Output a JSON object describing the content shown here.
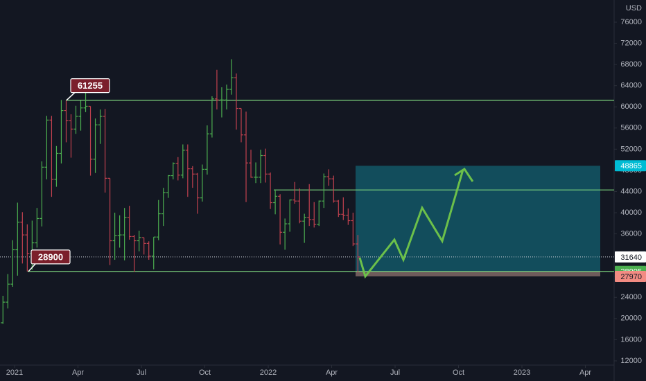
{
  "chart_data": {
    "type": "ohlc",
    "currency": "USD",
    "x": [
      -0.55,
      -0.32,
      -0.09,
      0.14,
      0.37,
      0.6,
      0.83,
      1.06,
      1.29,
      1.52,
      1.75,
      1.98,
      2.21,
      2.44,
      2.67,
      2.9,
      3.13,
      3.36,
      3.59,
      3.82,
      4.05,
      4.28,
      4.51,
      4.74,
      4.97,
      5.2,
      5.43,
      5.66,
      5.89,
      6.12,
      6.35,
      6.58,
      6.81,
      7.04,
      7.27,
      7.5,
      7.73,
      7.96,
      8.19,
      8.42,
      8.65,
      8.88,
      9.11,
      9.34,
      9.57,
      9.8,
      10.03,
      10.26,
      10.49,
      10.72,
      10.95,
      11.18,
      11.41,
      11.64,
      11.87,
      12.1,
      12.33,
      12.56,
      12.79,
      13.02,
      13.25,
      13.48,
      13.71,
      13.94,
      14.17,
      14.4,
      14.63,
      14.86,
      15.09,
      15.32,
      15.55,
      15.78,
      16.01,
      16.24
    ],
    "open": [
      19200,
      23100,
      26500,
      33000,
      38200,
      35800,
      32300,
      34300,
      38900,
      48600,
      57500,
      46300,
      51200,
      59300,
      57400,
      55800,
      58200,
      59800,
      60100,
      50100,
      56600,
      58200,
      46500,
      34700,
      35700,
      35800,
      39100,
      35500,
      34700,
      35300,
      34200,
      31800,
      35400,
      39800,
      43800,
      47000,
      49300,
      47100,
      51800,
      48300,
      47300,
      42800,
      48200,
      54900,
      61500,
      61300,
      61300,
      63300,
      65500,
      59700,
      54700,
      49400,
      46700,
      46700,
      50800,
      47300,
      41900,
      43100,
      36300,
      37900,
      42400,
      42200,
      38400,
      39100,
      38700,
      37800,
      42200,
      46800,
      46400,
      42200,
      39700,
      39500,
      38500,
      34100
    ],
    "high": [
      24300,
      28400,
      34800,
      41900,
      40100,
      37800,
      38500,
      40900,
      49700,
      58300,
      58300,
      52600,
      61300,
      61200,
      58600,
      60200,
      61200,
      64900,
      60100,
      57800,
      59500,
      59600,
      46500,
      40000,
      39500,
      40900,
      41300,
      35800,
      36600,
      35300,
      34600,
      35400,
      42400,
      44700,
      47100,
      49500,
      50500,
      52900,
      52900,
      48800,
      47500,
      49100,
      56500,
      62000,
      67000,
      63700,
      64200,
      69000,
      66300,
      59700,
      59100,
      51900,
      49500,
      51900,
      52100,
      47600,
      44400,
      43500,
      38900,
      42500,
      45800,
      44600,
      39800,
      45400,
      42000,
      42300,
      47400,
      48200,
      47000,
      42400,
      42900,
      40800,
      40000,
      35800
    ],
    "low": [
      19000,
      21900,
      26000,
      28100,
      30400,
      28900,
      29200,
      33400,
      37400,
      46300,
      43000,
      44900,
      49300,
      53300,
      50400,
      54900,
      55500,
      59000,
      47000,
      47500,
      53000,
      43800,
      30100,
      31100,
      33400,
      31000,
      34900,
      28800,
      32700,
      32100,
      31100,
      29300,
      34800,
      37500,
      42800,
      46300,
      46100,
      46500,
      43000,
      44700,
      39800,
      42100,
      47200,
      54200,
      59500,
      58000,
      59500,
      62300,
      55700,
      53300,
      42000,
      46600,
      45600,
      45600,
      45700,
      40700,
      39700,
      34000,
      33000,
      36400,
      41700,
      38000,
      34300,
      37500,
      37200,
      37500,
      40900,
      45100,
      41900,
      39200,
      38600,
      37700,
      33700,
      28700
    ],
    "close": [
      23100,
      26500,
      33000,
      38200,
      35800,
      32300,
      34300,
      38900,
      48600,
      57500,
      46300,
      51200,
      59300,
      57400,
      55800,
      58200,
      59800,
      60100,
      50100,
      56600,
      58200,
      46500,
      34700,
      35700,
      35800,
      39100,
      35500,
      34700,
      35300,
      34200,
      31800,
      35400,
      39800,
      43800,
      47000,
      49300,
      47100,
      51800,
      48300,
      47300,
      42800,
      48200,
      54900,
      61500,
      61300,
      61300,
      63300,
      65500,
      59700,
      54700,
      49400,
      46700,
      46700,
      50800,
      47300,
      41900,
      43100,
      36300,
      37900,
      42400,
      42200,
      38400,
      39100,
      38700,
      37800,
      42200,
      46800,
      46400,
      42200,
      39700,
      39500,
      38500,
      34100,
      31640
    ],
    "up_color": "#4caf50",
    "down_color": "#c2414f",
    "levels": [
      61255,
      28900,
      44300
    ],
    "level_color": "#7ed67e",
    "last_price": 31640,
    "position": {
      "target": 48865,
      "entry": 28905,
      "stop": 27970,
      "profit_color": "#137a8c",
      "loss_color": "#6e5b5b"
    },
    "xlim": [
      -0.69,
      28.36
    ],
    "ylim": [
      11209,
      80188
    ],
    "xticks": [
      {
        "value": 0,
        "label": "2021"
      },
      {
        "value": 3,
        "label": "Apr"
      },
      {
        "value": 6,
        "label": "Jul"
      },
      {
        "value": 9,
        "label": "Oct"
      },
      {
        "value": 12,
        "label": "2022"
      },
      {
        "value": 15,
        "label": "Apr"
      },
      {
        "value": 18,
        "label": "Jul"
      },
      {
        "value": 21,
        "label": "Oct"
      },
      {
        "value": 24,
        "label": "2023"
      },
      {
        "value": 27,
        "label": "Apr"
      }
    ],
    "yticks": [
      12000,
      16000,
      20000,
      24000,
      28000,
      32000,
      36000,
      40000,
      44000,
      48000,
      52000,
      56000,
      60000,
      64000,
      68000,
      72000,
      76000
    ]
  }
}
